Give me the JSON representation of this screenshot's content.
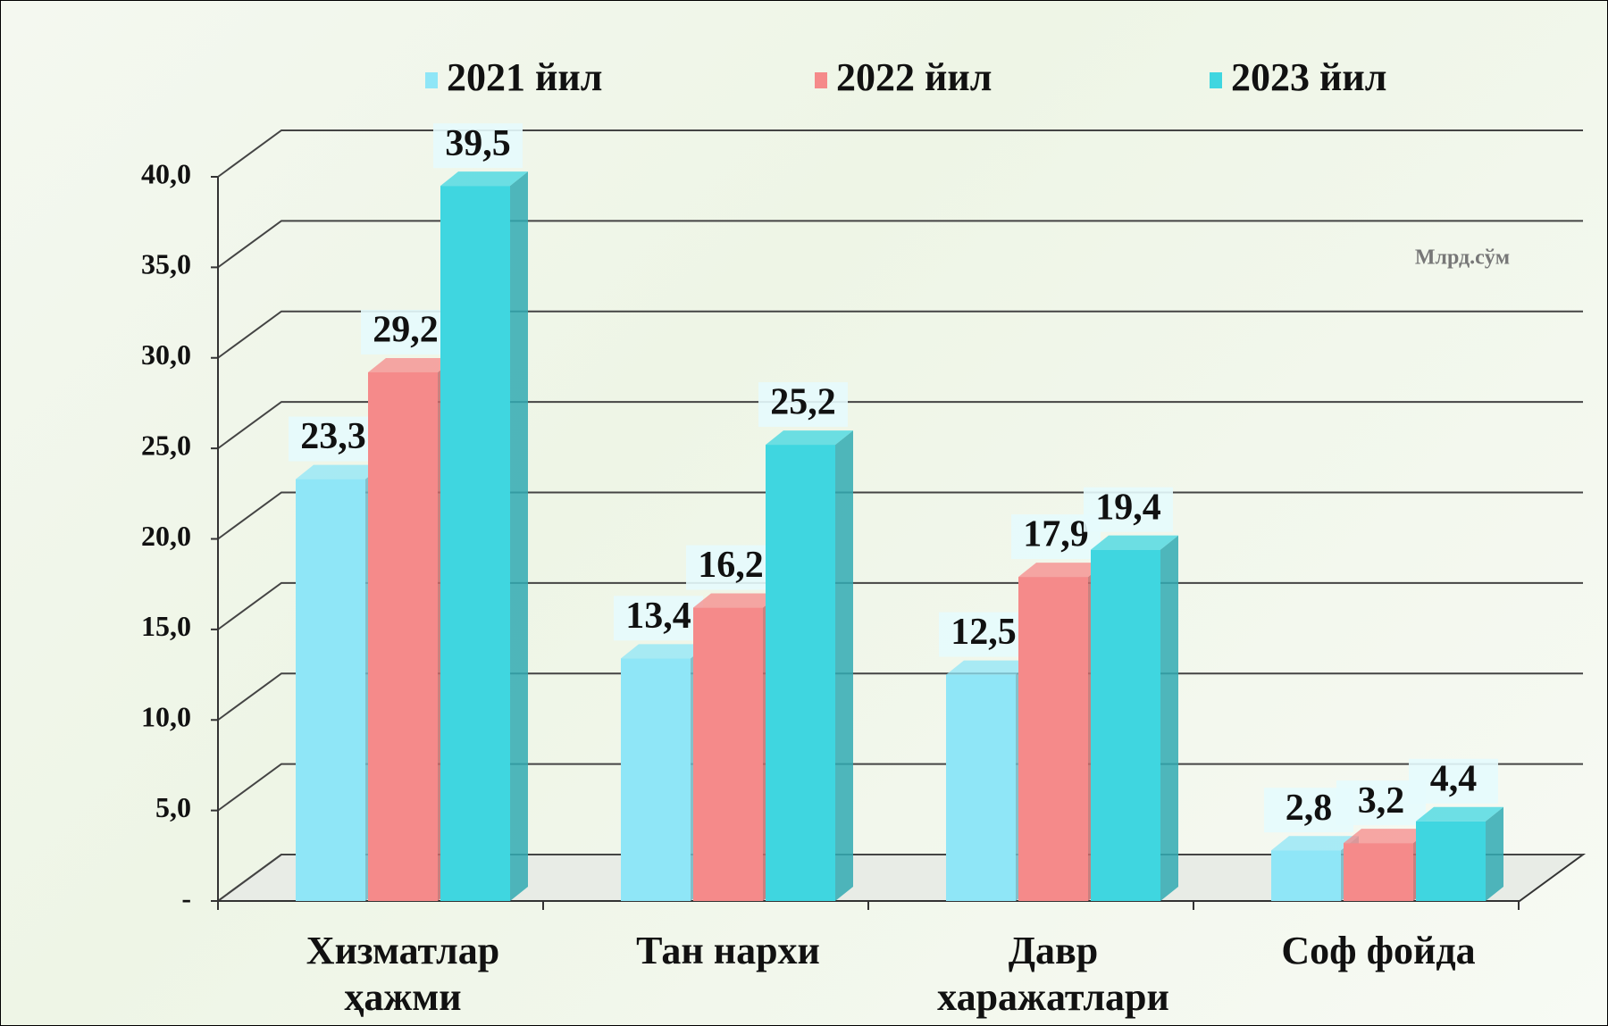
{
  "chart_data": {
    "type": "bar3d",
    "annotation": "Млрд.сўм",
    "categories": [
      "Хизматлар ҳажми",
      "Тан нархи",
      "Давр харажатлари",
      "Соф фойда"
    ],
    "series": [
      {
        "name": "2021 йил",
        "color": "#8fe6f7",
        "values": [
          23.3,
          13.4,
          12.5,
          2.8
        ],
        "value_labels": [
          "23,3",
          "13,4",
          "12,5",
          "2,8"
        ]
      },
      {
        "name": "2022 йил",
        "color": "#f58a8a",
        "values": [
          29.2,
          16.2,
          17.9,
          3.2
        ],
        "value_labels": [
          "29,2",
          "16,2",
          "17,9",
          "3,2"
        ]
      },
      {
        "name": "2023 йил",
        "color": "#3fd6e0",
        "values": [
          39.5,
          25.2,
          19.4,
          4.4
        ],
        "value_labels": [
          "39,5",
          "25,2",
          "19,4",
          "4,4"
        ]
      }
    ],
    "ylim": [
      0,
      40
    ],
    "yticks": [
      {
        "value": 0,
        "label": "-"
      },
      {
        "value": 5,
        "label": "5,0"
      },
      {
        "value": 10,
        "label": "10,0"
      },
      {
        "value": 15,
        "label": "15,0"
      },
      {
        "value": 20,
        "label": "20,0"
      },
      {
        "value": 25,
        "label": "25,0"
      },
      {
        "value": 30,
        "label": "30,0"
      },
      {
        "value": 35,
        "label": "35,0"
      },
      {
        "value": 40,
        "label": "40,0"
      }
    ],
    "grid": true
  }
}
